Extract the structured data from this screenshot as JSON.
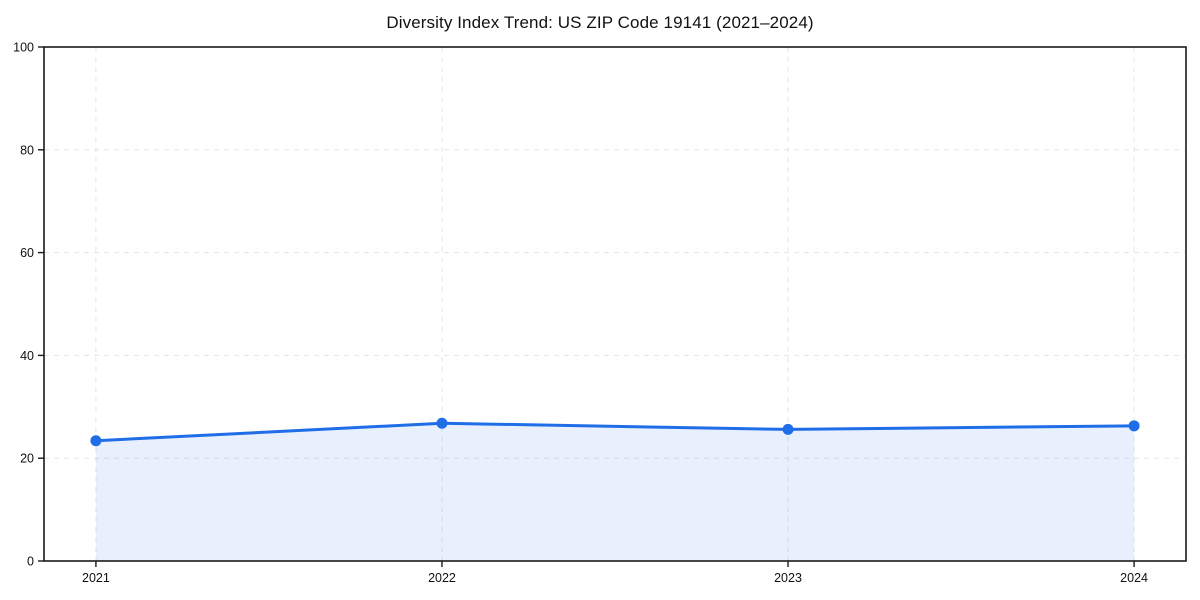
{
  "chart_data": {
    "type": "area",
    "title": "Diversity Index Trend: US ZIP Code 19141 (2021–2024)",
    "categories": [
      "2021",
      "2022",
      "2023",
      "2024"
    ],
    "x": [
      2021,
      2022,
      2023,
      2024
    ],
    "series": [
      {
        "name": "Diversity Index",
        "values": [
          23.4,
          26.8,
          25.6,
          26.3
        ]
      }
    ],
    "xlabel": "",
    "ylabel": "",
    "xlim": [
      2020.85,
      2024.15
    ],
    "ylim": [
      0,
      100
    ],
    "yticks": [
      0,
      20,
      40,
      60,
      80,
      100
    ],
    "grid": true,
    "grid_style": "dashed",
    "legend": "none",
    "marker": "circle",
    "colors": {
      "line": "#1f6ee8",
      "fill": "rgba(31,110,232,0.10)",
      "grid": "#dddddd",
      "axis": "#1a1a1a",
      "text": "#111111",
      "background": "#ffffff"
    }
  }
}
